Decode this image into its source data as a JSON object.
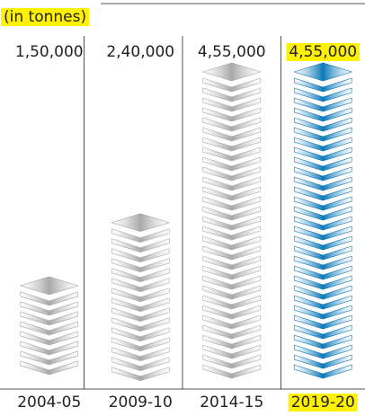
{
  "chart_data": {
    "type": "pictograph",
    "subtitle": "(in tonnes)",
    "categories": [
      "2004-05",
      "2009-10",
      "2014-15",
      "2019-20"
    ],
    "values": [
      150000,
      240000,
      455000,
      455000
    ],
    "value_labels": [
      "1,50,000",
      "2,40,000",
      "4,55,000",
      "4,55,000"
    ],
    "colors": [
      "#a8a8a8",
      "#a8a8a8",
      "#a8a8a8",
      "#0a78b8"
    ],
    "highlight": [
      false,
      false,
      false,
      true
    ],
    "highlight_color": "#fff200"
  }
}
